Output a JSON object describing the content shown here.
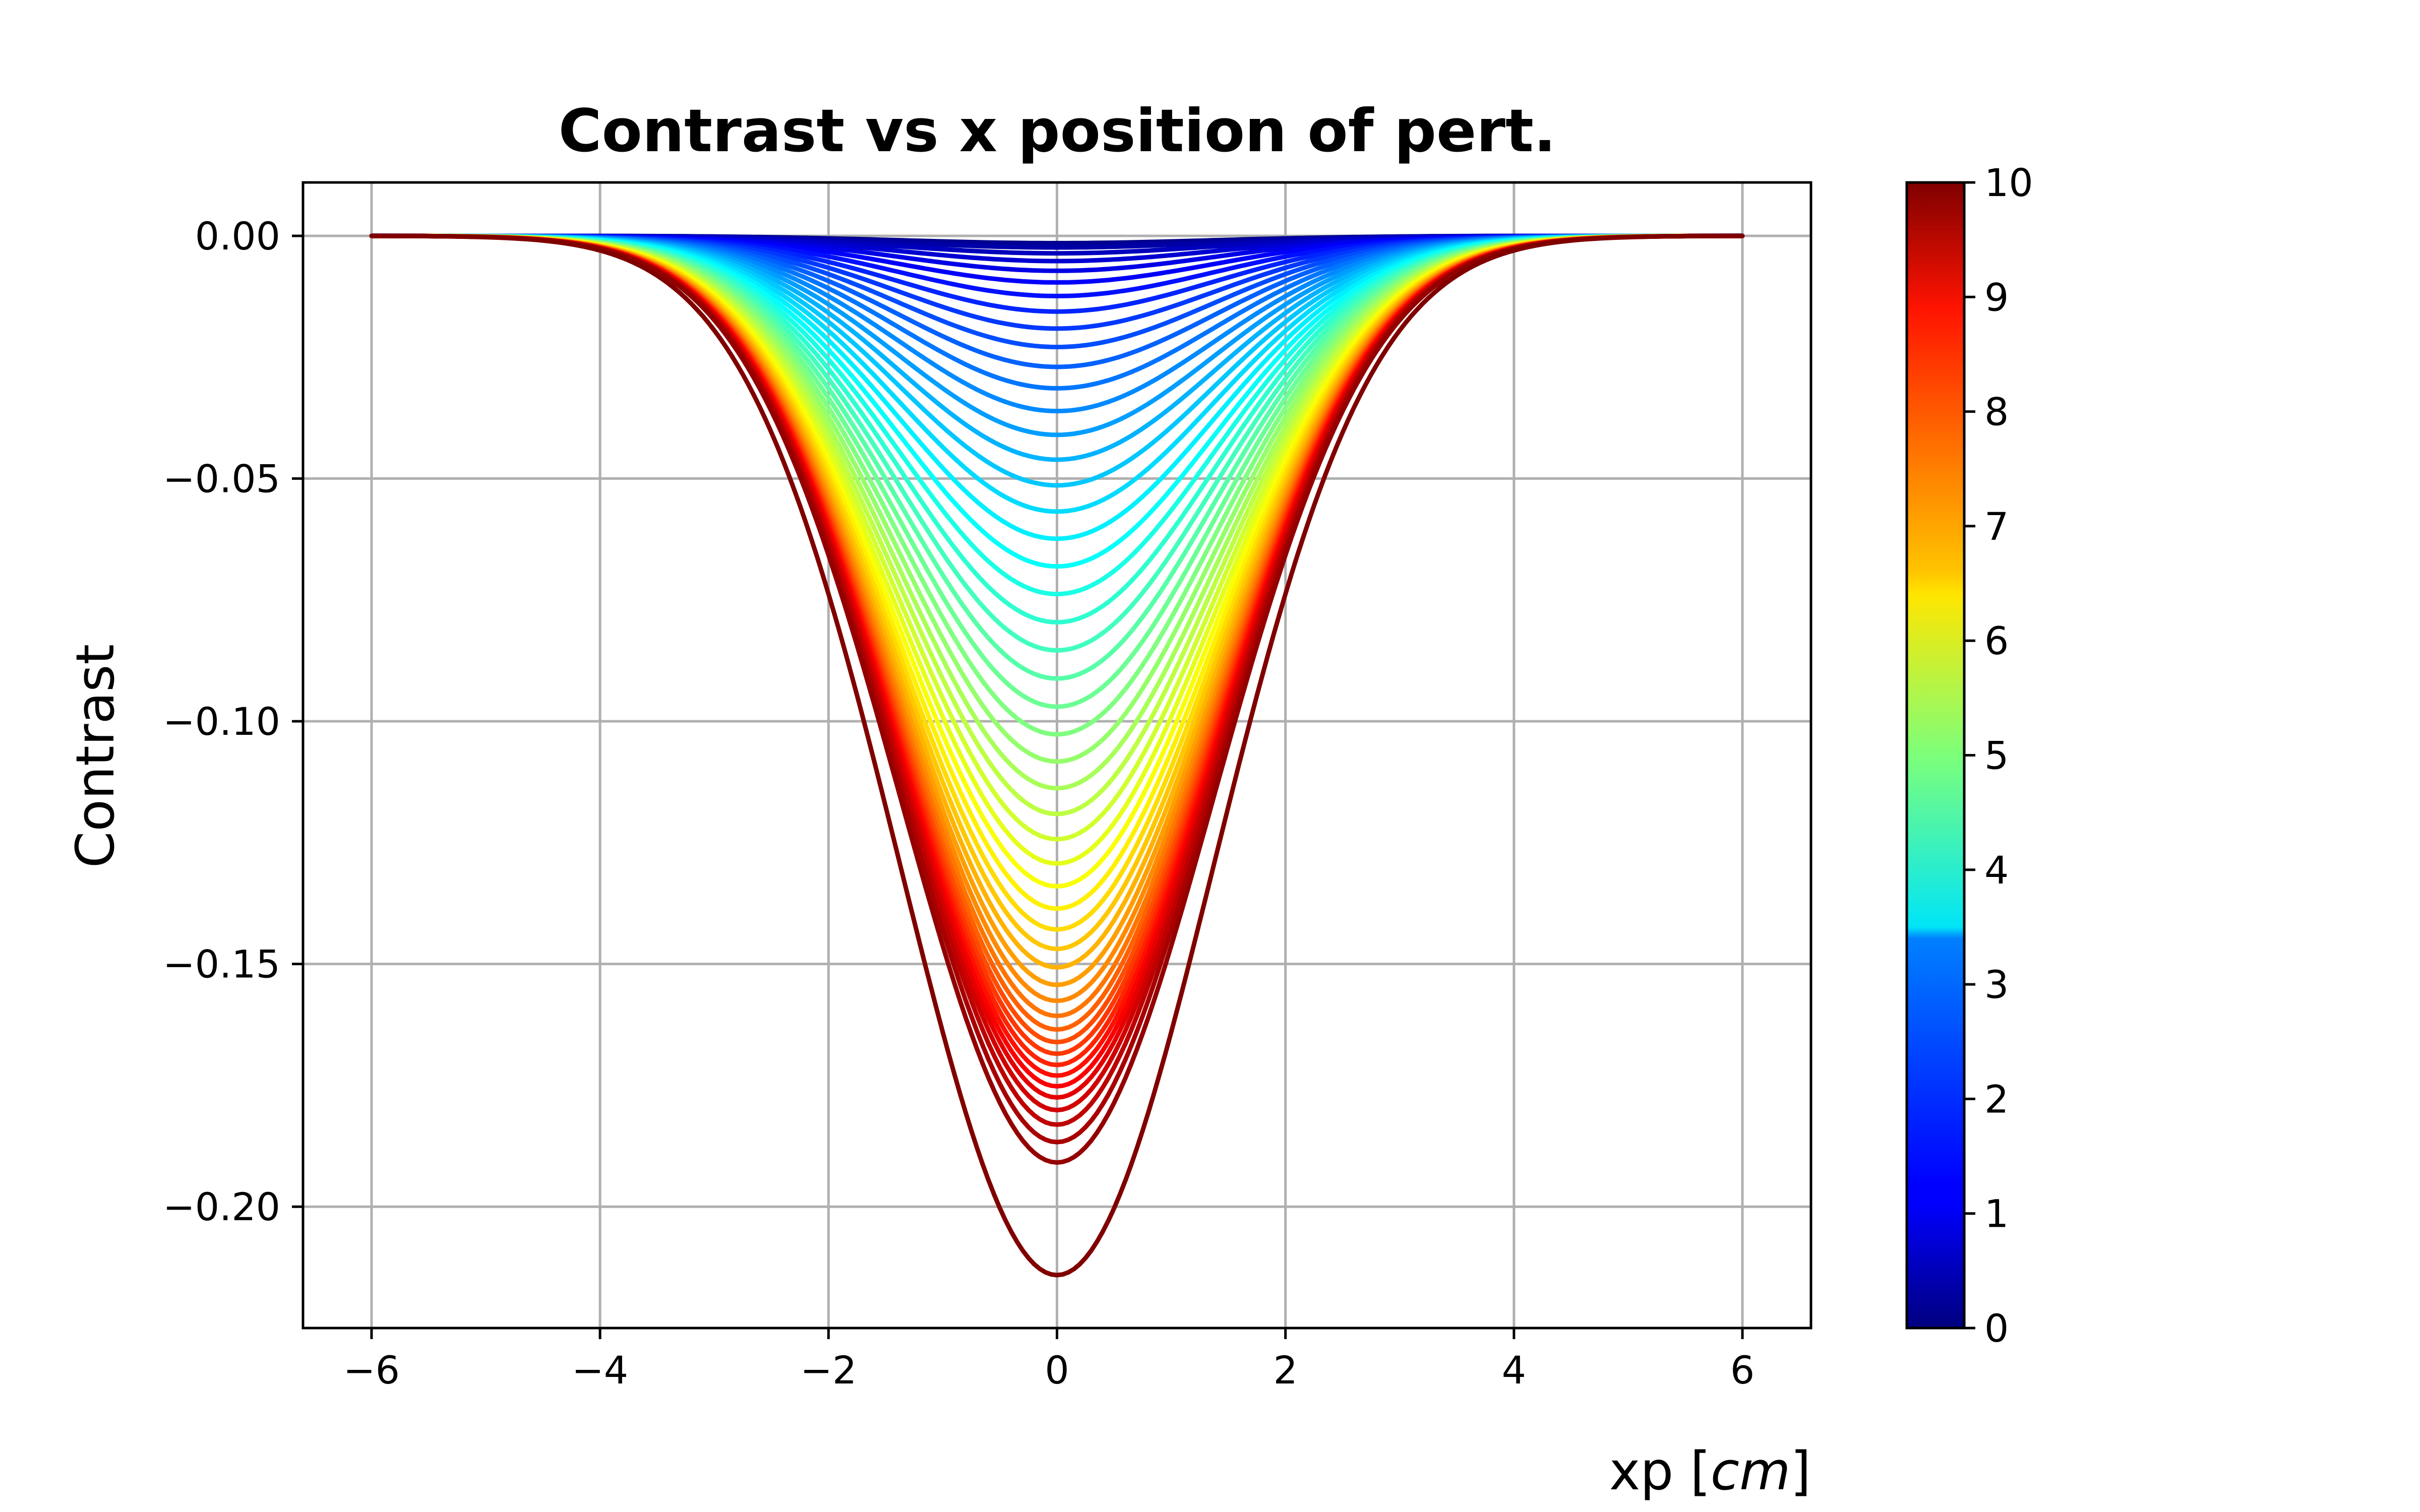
{
  "chart_data": {
    "type": "line",
    "title": "Contrast vs x position of pert.",
    "xlabel": "xp",
    "xlabel_unit": "cm",
    "ylabel": "Contrast",
    "xlim": [
      -6.6,
      6.6
    ],
    "ylim": [
      -0.225,
      0.011
    ],
    "x_ticks": [
      -6,
      -4,
      -2,
      0,
      2,
      4,
      6
    ],
    "x_tick_labels": [
      "−6",
      "−4",
      "−2",
      "0",
      "2",
      "4",
      "6"
    ],
    "y_ticks": [
      0.0,
      -0.05,
      -0.1,
      -0.15,
      -0.2
    ],
    "y_tick_labels": [
      "0.00",
      "−0.05",
      "−0.10",
      "−0.15",
      "−0.20"
    ],
    "grid": true,
    "colormap": "jet",
    "colorbar": {
      "range": [
        0,
        10
      ],
      "ticks": [
        0,
        1,
        2,
        3,
        4,
        5,
        6,
        7,
        8,
        9,
        10
      ],
      "tick_labels": [
        "0",
        "1",
        "2",
        "3",
        "4",
        "5",
        "6",
        "7",
        "8",
        "9",
        "10"
      ]
    },
    "x_range": [
      -6,
      6
    ],
    "curve_shape": "gaussian",
    "curve_sigma_cm": 1.37,
    "series_parameter": [
      0.0,
      0.2,
      0.4,
      0.6,
      0.8,
      1.0,
      1.2,
      1.4,
      1.6,
      1.8,
      2.0,
      2.2,
      2.4,
      2.6,
      2.8,
      3.0,
      3.2,
      3.4,
      3.6,
      3.8,
      4.0,
      4.2,
      4.4,
      4.6,
      4.8,
      5.0,
      5.2,
      5.4,
      5.6,
      5.8,
      6.0,
      6.2,
      6.4,
      6.6,
      6.8,
      7.0,
      7.2,
      7.4,
      7.6,
      7.8,
      8.0,
      8.2,
      8.4,
      8.6,
      8.8,
      9.0,
      9.2,
      9.4,
      9.6,
      9.8,
      10.0
    ],
    "series_min_contrast": [
      -0.0015,
      -0.0017,
      -0.0024,
      -0.0036,
      -0.0052,
      -0.0072,
      -0.0096,
      -0.0124,
      -0.0156,
      -0.0191,
      -0.0229,
      -0.027,
      -0.0314,
      -0.0361,
      -0.041,
      -0.0461,
      -0.0514,
      -0.0568,
      -0.0624,
      -0.0681,
      -0.0738,
      -0.0796,
      -0.0854,
      -0.0912,
      -0.097,
      -0.1027,
      -0.1083,
      -0.1138,
      -0.1191,
      -0.1243,
      -0.1293,
      -0.134,
      -0.1386,
      -0.1429,
      -0.1469,
      -0.1507,
      -0.1543,
      -0.1576,
      -0.1607,
      -0.1635,
      -0.1661,
      -0.1685,
      -0.1708,
      -0.173,
      -0.1752,
      -0.1775,
      -0.1801,
      -0.1831,
      -0.1867,
      -0.1909,
      -0.2141
    ]
  }
}
